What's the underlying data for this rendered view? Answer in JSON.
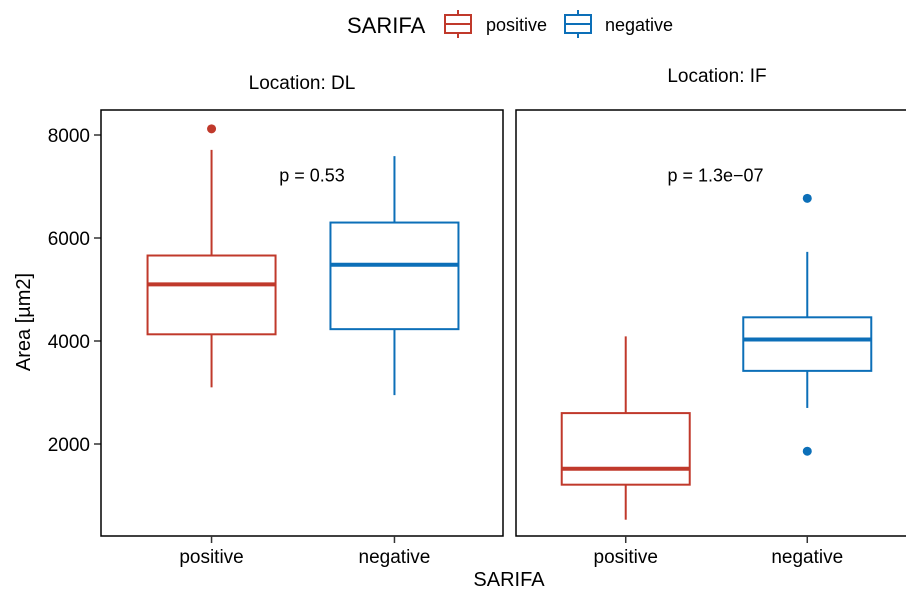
{
  "chart_data": {
    "type": "box",
    "xlabel": "SARIFA",
    "ylabel": "Area [µm2]",
    "ylim": [
      200,
      8600
    ],
    "y_ticks": [
      2000,
      4000,
      6000,
      8000
    ],
    "y_tick_labels": [
      "2000",
      "4000",
      "6000",
      "8000"
    ],
    "categories": [
      "positive",
      "negative"
    ],
    "legend": {
      "title": "SARIFA",
      "position": "top",
      "entries": [
        {
          "label": "positive",
          "color": "#C0392B"
        },
        {
          "label": "negative",
          "color": "#0C6FB8"
        }
      ]
    },
    "facets": [
      {
        "label": "Location: DL",
        "p_label": "p = 0.53",
        "p_value": 7100,
        "p_x": 0.5,
        "boxes": [
          {
            "group": "positive",
            "min": 3100,
            "q1": 4130,
            "median": 5100,
            "q3": 5660,
            "max": 7710,
            "outliers": [
              8120
            ]
          },
          {
            "group": "negative",
            "min": 2950,
            "q1": 4230,
            "median": 5480,
            "q3": 6300,
            "max": 7590,
            "outliers": []
          }
        ]
      },
      {
        "label": "Location: IF",
        "p_label": "p = 1.3e−07",
        "p_value": 7100,
        "p_x": 0.5,
        "boxes": [
          {
            "group": "positive",
            "min": 530,
            "q1": 1210,
            "median": 1520,
            "q3": 2600,
            "max": 4090,
            "outliers": []
          },
          {
            "group": "negative",
            "min": 2700,
            "q1": 3420,
            "median": 4030,
            "q3": 4460,
            "max": 5730,
            "outliers": [
              6770,
              1860
            ]
          }
        ]
      }
    ]
  }
}
